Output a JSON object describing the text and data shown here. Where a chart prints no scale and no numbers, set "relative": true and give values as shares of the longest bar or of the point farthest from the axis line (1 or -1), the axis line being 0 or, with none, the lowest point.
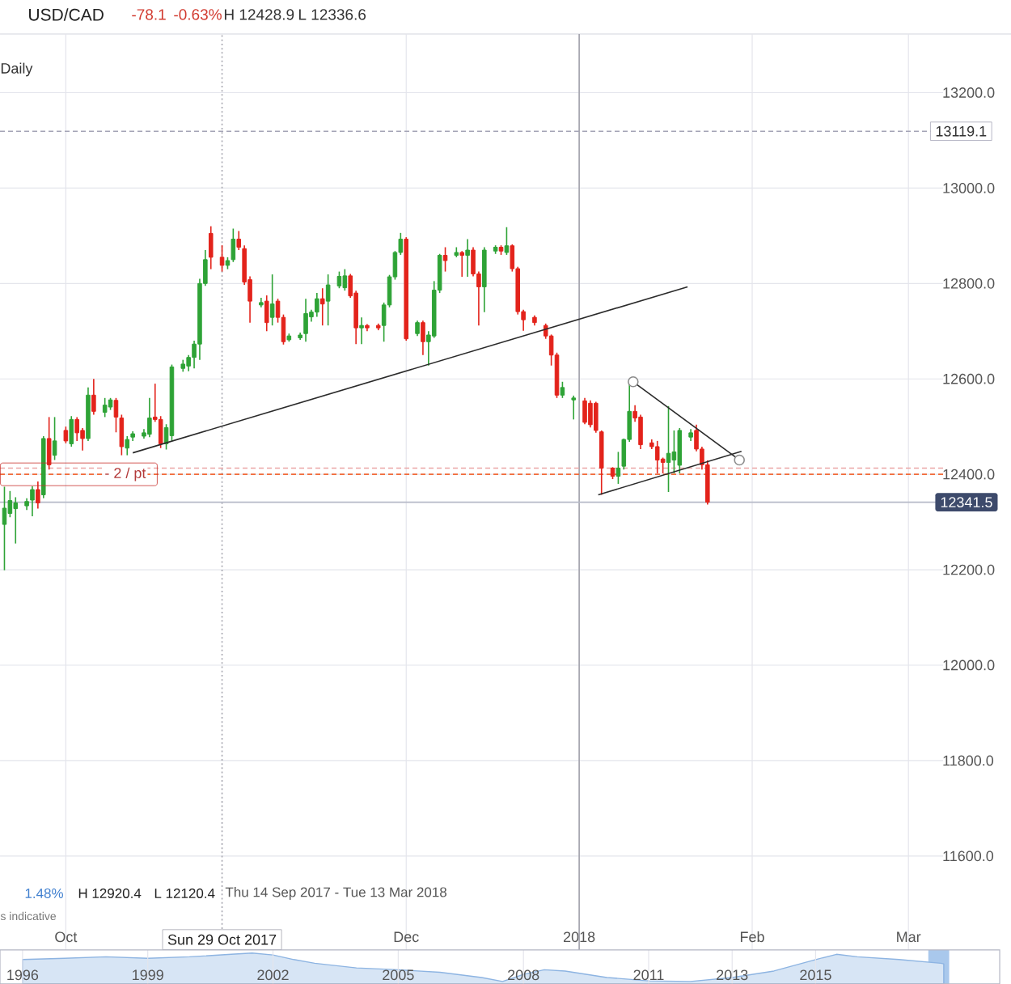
{
  "chart_data": [
    {
      "type": "candlestick",
      "title": "USD/CAD",
      "annotations": [
        "-78.1",
        "-0.63%",
        "H 12428.9",
        "L 12336.6",
        "Daily",
        "1.48%",
        "H 12920.4",
        "L 12120.4",
        "Thu 14 Sep 2017 - Tue 13 Mar 2018",
        "s indicative"
      ],
      "x": [
        "2017-09-20",
        "2017-09-21",
        "2017-09-22",
        "2017-09-24",
        "2017-09-25",
        "2017-09-26",
        "2017-09-27",
        "2017-09-28",
        "2017-09-29",
        "2017-10-01",
        "2017-10-02",
        "2017-10-03",
        "2017-10-04",
        "2017-10-05",
        "2017-10-06",
        "2017-10-08",
        "2017-10-09",
        "2017-10-10",
        "2017-10-11",
        "2017-10-12",
        "2017-10-13",
        "2017-10-15",
        "2017-10-16",
        "2017-10-17",
        "2017-10-18",
        "2017-10-19",
        "2017-10-20",
        "2017-10-22",
        "2017-10-23",
        "2017-10-24",
        "2017-10-25",
        "2017-10-26",
        "2017-10-27",
        "2017-10-29",
        "2017-10-30",
        "2017-10-31",
        "2017-11-01",
        "2017-11-02",
        "2017-11-03",
        "2017-11-05",
        "2017-11-06",
        "2017-11-07",
        "2017-11-08",
        "2017-11-09",
        "2017-11-10",
        "2017-11-12",
        "2017-11-13",
        "2017-11-14",
        "2017-11-15",
        "2017-11-16",
        "2017-11-17",
        "2017-11-19",
        "2017-11-20",
        "2017-11-21",
        "2017-11-22",
        "2017-11-23",
        "2017-11-24",
        "2017-11-26",
        "2017-11-27",
        "2017-11-28",
        "2017-11-29",
        "2017-11-30",
        "2017-12-01",
        "2017-12-03",
        "2017-12-04",
        "2017-12-05",
        "2017-12-06",
        "2017-12-07",
        "2017-12-08",
        "2017-12-10",
        "2017-12-11",
        "2017-12-12",
        "2017-12-13",
        "2017-12-14",
        "2017-12-15",
        "2017-12-17",
        "2017-12-18",
        "2017-12-19",
        "2017-12-20",
        "2017-12-21",
        "2017-12-22",
        "2017-12-24",
        "2017-12-26",
        "2017-12-27",
        "2017-12-28",
        "2017-12-29",
        "2017-12-31",
        "2018-01-02",
        "2018-01-03",
        "2018-01-04",
        "2018-01-05",
        "2018-01-07",
        "2018-01-08",
        "2018-01-09",
        "2018-01-10",
        "2018-01-11",
        "2018-01-12",
        "2018-01-14",
        "2018-01-15",
        "2018-01-16",
        "2018-01-17",
        "2018-01-18",
        "2018-01-19",
        "2018-01-21",
        "2018-01-22",
        "2018-01-23",
        "2018-01-24"
      ],
      "ohlc": [
        [
          12295,
          12374,
          12199,
          12329
        ],
        [
          12318,
          12365,
          12310,
          12345
        ],
        [
          12328,
          12352,
          12255,
          12340
        ],
        [
          12334,
          12350,
          12325,
          12343
        ],
        [
          12346,
          12375,
          12312,
          12368
        ],
        [
          12368,
          12385,
          12328,
          12340
        ],
        [
          12357,
          12480,
          12350,
          12475
        ],
        [
          12475,
          12520,
          12410,
          12420
        ],
        [
          12440,
          12520,
          12430,
          12470
        ],
        [
          12492,
          12500,
          12465,
          12470
        ],
        [
          12464,
          12522,
          12458,
          12515
        ],
        [
          12515,
          12520,
          12470,
          12487
        ],
        [
          12492,
          12497,
          12450,
          12475
        ],
        [
          12475,
          12582,
          12470,
          12566
        ],
        [
          12566,
          12600,
          12525,
          12532
        ],
        [
          12530,
          12560,
          12520,
          12545
        ],
        [
          12541,
          12560,
          12535,
          12556
        ],
        [
          12555,
          12560,
          12488,
          12520
        ],
        [
          12518,
          12525,
          12440,
          12458
        ],
        [
          12455,
          12480,
          12440,
          12473
        ],
        [
          12478,
          12490,
          12470,
          12485
        ],
        [
          12480,
          12495,
          12475,
          12487
        ],
        [
          12484,
          12560,
          12478,
          12518
        ],
        [
          12520,
          12590,
          12510,
          12515
        ],
        [
          12515,
          12522,
          12455,
          12464
        ],
        [
          12464,
          12505,
          12452,
          12498
        ],
        [
          12481,
          12630,
          12470,
          12625
        ],
        [
          12622,
          12640,
          12615,
          12631
        ],
        [
          12627,
          12650,
          12616,
          12645
        ],
        [
          12645,
          12680,
          12622,
          12673
        ],
        [
          12673,
          12810,
          12640,
          12800
        ],
        [
          12800,
          12870,
          12795,
          12850
        ],
        [
          12905,
          12920,
          12830,
          12855
        ],
        [
          12855,
          12880,
          12825,
          12838
        ],
        [
          12838,
          12855,
          12830,
          12848
        ],
        [
          12850,
          12915,
          12845,
          12893
        ],
        [
          12893,
          12910,
          12870,
          12876
        ],
        [
          12873,
          12880,
          12797,
          12803
        ],
        [
          12808,
          12815,
          12718,
          12763
        ],
        [
          12755,
          12770,
          12750,
          12760
        ],
        [
          12763,
          12775,
          12700,
          12718
        ],
        [
          12729,
          12819,
          12712,
          12757
        ],
        [
          12763,
          12768,
          12718,
          12729
        ],
        [
          12729,
          12735,
          12672,
          12678
        ],
        [
          12682,
          12695,
          12678,
          12690
        ],
        [
          12686,
          12697,
          12682,
          12692
        ],
        [
          12695,
          12768,
          12678,
          12737
        ],
        [
          12730,
          12745,
          12720,
          12740
        ],
        [
          12740,
          12780,
          12730,
          12768
        ],
        [
          12768,
          12790,
          12712,
          12757
        ],
        [
          12763,
          12819,
          12712,
          12797
        ],
        [
          12795,
          12825,
          12790,
          12815
        ],
        [
          12791,
          12830,
          12785,
          12816
        ],
        [
          12816,
          12820,
          12770,
          12774
        ],
        [
          12780,
          12785,
          12673,
          12707
        ],
        [
          12707,
          12729,
          12673,
          12712
        ],
        [
          12712,
          12715,
          12700,
          12707
        ],
        [
          12712,
          12716,
          12702,
          12707
        ],
        [
          12712,
          12760,
          12678,
          12755
        ],
        [
          12755,
          12818,
          12750,
          12814
        ],
        [
          12814,
          12868,
          12808,
          12865
        ],
        [
          12865,
          12906,
          12860,
          12893
        ],
        [
          12893,
          12897,
          12680,
          12684
        ],
        [
          12695,
          12722,
          12690,
          12718
        ],
        [
          12718,
          12722,
          12650,
          12678
        ],
        [
          12678,
          12700,
          12628,
          12692
        ],
        [
          12690,
          12805,
          12686,
          12786
        ],
        [
          12786,
          12862,
          12780,
          12859
        ],
        [
          12859,
          12876,
          12825,
          12848
        ],
        [
          12859,
          12876,
          12855,
          12865
        ],
        [
          12865,
          12868,
          12814,
          12859
        ],
        [
          12859,
          12893,
          12814,
          12870
        ],
        [
          12870,
          12876,
          12815,
          12820
        ],
        [
          12820,
          12825,
          12712,
          12793
        ],
        [
          12793,
          12876,
          12740,
          12870
        ],
        [
          12868,
          12880,
          12862,
          12876
        ],
        [
          12876,
          12880,
          12860,
          12868
        ],
        [
          12865,
          12918,
          12860,
          12879
        ],
        [
          12879,
          12882,
          12825,
          12831
        ],
        [
          12831,
          12835,
          12735,
          12741
        ],
        [
          12741,
          12745,
          12701,
          12724
        ],
        [
          12729,
          12733,
          12712,
          12718
        ],
        [
          12712,
          12716,
          12684,
          12690
        ],
        [
          12690,
          12693,
          12628,
          12650
        ],
        [
          12650,
          12655,
          12560,
          12566
        ],
        [
          12566,
          12594,
          12560,
          12582
        ],
        [
          12556,
          12565,
          12515,
          12560
        ],
        [
          12554,
          12560,
          12505,
          12509
        ],
        [
          12549,
          12555,
          12498,
          12504
        ],
        [
          12549,
          12552,
          12487,
          12492
        ],
        [
          12489,
          12492,
          12357,
          12413
        ],
        [
          12413,
          12415,
          12390,
          12396
        ],
        [
          12396,
          12447,
          12380,
          12413
        ],
        [
          12417,
          12475,
          12410,
          12473
        ],
        [
          12473,
          12590,
          12468,
          12532
        ],
        [
          12532,
          12545,
          12510,
          12518
        ],
        [
          12520,
          12525,
          12453,
          12462
        ],
        [
          12466,
          12473,
          12453,
          12458
        ],
        [
          12458,
          12470,
          12402,
          12430
        ],
        [
          12432,
          12435,
          12402,
          12425
        ],
        [
          12425,
          12543,
          12363,
          12444
        ],
        [
          12430,
          12492,
          12402,
          12447
        ],
        [
          12419,
          12497,
          12402,
          12492
        ],
        [
          12478,
          12495,
          12470,
          12487
        ],
        [
          12492,
          12504,
          12448,
          12453
        ],
        [
          12453,
          12458,
          12410,
          12420
        ],
        [
          12420,
          12428.9,
          12336.6,
          12341.5
        ]
      ],
      "colors": [
        "#2ea336",
        "#2ea336",
        "#2ea336",
        "#2ea336",
        "#2ea336",
        "#e3231b",
        "#2ea336",
        "#e3231b",
        "#2ea336",
        "#e3231b",
        "#2ea336",
        "#e3231b",
        "#e3231b",
        "#2ea336",
        "#e3231b",
        "#2ea336",
        "#2ea336",
        "#e3231b",
        "#e3231b",
        "#2ea336",
        "#2ea336",
        "#2ea336",
        "#2ea336",
        "#e3231b",
        "#e3231b",
        "#2ea336",
        "#2ea336",
        "#2ea336",
        "#2ea336",
        "#2ea336",
        "#2ea336",
        "#2ea336",
        "#e3231b",
        "#e3231b",
        "#2ea336",
        "#2ea336",
        "#e3231b",
        "#e3231b",
        "#e3231b",
        "#2ea336",
        "#e3231b",
        "#2ea336",
        "#e3231b",
        "#e3231b",
        "#2ea336",
        "#2ea336",
        "#2ea336",
        "#2ea336",
        "#2ea336",
        "#e3231b",
        "#2ea336",
        "#2ea336",
        "#2ea336",
        "#e3231b",
        "#e3231b",
        "#2ea336",
        "#e3231b",
        "#e3231b",
        "#2ea336",
        "#2ea336",
        "#2ea336",
        "#2ea336",
        "#e3231b",
        "#2ea336",
        "#e3231b",
        "#2ea336",
        "#2ea336",
        "#2ea336",
        "#e3231b",
        "#2ea336",
        "#e3231b",
        "#2ea336",
        "#e3231b",
        "#e3231b",
        "#2ea336",
        "#2ea336",
        "#e3231b",
        "#2ea336",
        "#e3231b",
        "#e3231b",
        "#e3231b",
        "#e3231b",
        "#e3231b",
        "#e3231b",
        "#e3231b",
        "#2ea336",
        "#2ea336",
        "#e3231b",
        "#e3231b",
        "#e3231b",
        "#e3231b",
        "#e3231b",
        "#2ea336",
        "#2ea336",
        "#2ea336",
        "#e3231b",
        "#e3231b",
        "#e3231b",
        "#e3231b",
        "#e3231b",
        "#2ea336",
        "#2ea336",
        "#2ea336",
        "#2ea336",
        "#e3231b",
        "#e3231b",
        "#e3231b"
      ],
      "series": [
        {
          "type": "line",
          "color": "#2b2b2b",
          "x": [
            "2017-10-13",
            "2018-01-20T10:00"
          ],
          "values": [
            12445,
            12793
          ]
        },
        {
          "type": "line",
          "color": "#2b2b2b",
          "x": [
            "2018-01-10T16:00",
            "2018-01-29T17:00"
          ],
          "values": [
            12594,
            12430
          ],
          "marker": "circle"
        },
        {
          "type": "line",
          "color": "#2b2b2b",
          "x": [
            "2018-01-04T10:00",
            "2018-01-30T02:00"
          ],
          "values": [
            12357,
            12448
          ]
        }
      ],
      "xlim": [
        "2017-09-19T05:00",
        "2018-03-07T05:00"
      ],
      "ylim": [
        11403,
        13323
      ],
      "xticks": [
        {
          "value": "2017-10-01",
          "label": "Oct"
        },
        {
          "value": "2017-12-01",
          "label": "Dec"
        },
        {
          "value": "2018-01-01",
          "label": "2018"
        },
        {
          "value": "2018-02-01",
          "label": "Feb"
        },
        {
          "value": "2018-03-01",
          "label": "Mar"
        }
      ],
      "yticks": [
        {
          "value": 11600,
          "label": "11600.0"
        },
        {
          "value": 11800,
          "label": "11800.0"
        },
        {
          "value": 12000,
          "label": "12000.0"
        },
        {
          "value": 12200,
          "label": "12200.0"
        },
        {
          "value": 12400,
          "label": "12400.0"
        },
        {
          "value": 12600,
          "label": "12600.0"
        },
        {
          "value": 12800,
          "label": "12800.0"
        },
        {
          "value": 13000,
          "label": "13000.0"
        },
        {
          "value": 13200,
          "label": "13200.0"
        }
      ],
      "grid": true,
      "ref_lines": [
        {
          "axis": "x",
          "value": "2017-10-29",
          "label": "Sun 29 Oct 2017",
          "line_style": "dotted",
          "color": "#a6a6b0"
        },
        {
          "axis": "x",
          "value": "2018-01-01",
          "color": "#a2a2ac"
        },
        {
          "axis": "y",
          "value": 13119.1,
          "label": "13119.1",
          "line_style": "dashed",
          "color": "#a4a4b6"
        },
        {
          "axis": "y",
          "value": 12413,
          "line_style": "dashed",
          "color": "#eba6a6"
        },
        {
          "axis": "y",
          "value": 12400,
          "label": "- 2 / pt",
          "line_style": "dashed",
          "color": "#f26b3a"
        },
        {
          "axis": "y",
          "value": 12341.5,
          "label": "12341.5",
          "color": "#b6bac8"
        }
      ]
    },
    {
      "type": "area",
      "relative": true,
      "x": [
        1996,
        1997,
        1998,
        1999,
        2000,
        2001,
        2001.5,
        2002,
        2002.5,
        2003,
        2004,
        2005,
        2006,
        2007,
        2007.5,
        2008,
        2008.5,
        2009,
        2010,
        2011,
        2012,
        2013,
        2014,
        2015,
        2015.5,
        2016,
        2017,
        2017.5,
        2018,
        2018.07
      ],
      "values": [
        0.79,
        0.83,
        0.88,
        0.83,
        0.88,
        0.96,
        1,
        0.94,
        0.79,
        0.67,
        0.52,
        0.46,
        0.38,
        0.21,
        0.08,
        0.31,
        0.46,
        0.42,
        0.21,
        0.1,
        0.08,
        0.21,
        0.42,
        0.79,
        0.96,
        0.88,
        0.79,
        0.73,
        0.67,
        0.65
      ],
      "color": "#8db4e2",
      "xlim": [
        1995.46,
        2019.41
      ],
      "xticks": [
        1996,
        1999,
        2002,
        2005,
        2008,
        2011,
        2013,
        2015
      ],
      "grid": "x",
      "bands": [
        {
          "axis": "x",
          "from": 2017.7,
          "to": 2018.2,
          "color": "#a9c8ec"
        }
      ]
    }
  ]
}
